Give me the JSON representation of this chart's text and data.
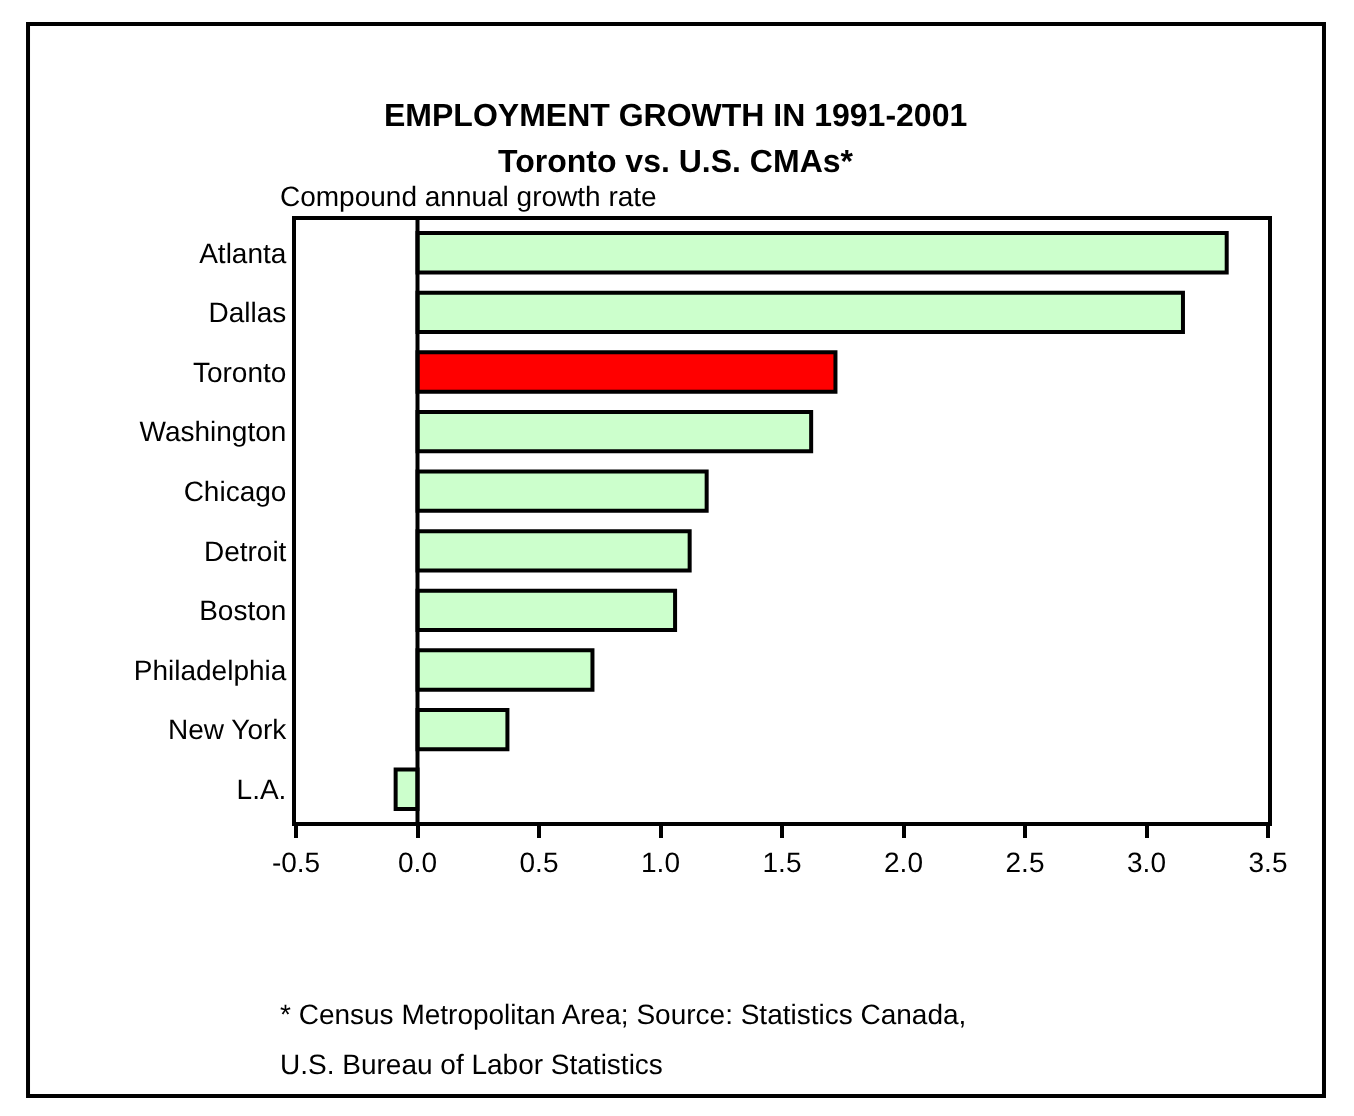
{
  "chart_data": {
    "type": "bar",
    "orientation": "horizontal",
    "title": "EMPLOYMENT GROWTH IN 1991-2001",
    "subtitle": "Toronto vs. U.S. CMAs*",
    "categories": [
      "Atlanta",
      "Dallas",
      "Toronto",
      "Washington",
      "Chicago",
      "Detroit",
      "Boston",
      "Philadelphia",
      "New York",
      "L.A."
    ],
    "values": [
      3.33,
      3.15,
      1.72,
      1.62,
      1.19,
      1.12,
      1.06,
      0.72,
      0.37,
      -0.09
    ],
    "colors": [
      "#ccffcc",
      "#ccffcc",
      "#ff0000",
      "#ccffcc",
      "#ccffcc",
      "#ccffcc",
      "#ccffcc",
      "#ccffcc",
      "#ccffcc",
      "#ccffcc"
    ],
    "xlim": [
      -0.5,
      3.5
    ],
    "xticks": [
      {
        "value": -0.5,
        "label": "-0.5"
      },
      {
        "value": 0,
        "label": "0.0"
      },
      {
        "value": 0.5,
        "label": "0.5"
      },
      {
        "value": 1,
        "label": "1.0"
      },
      {
        "value": 1.5,
        "label": "1.5"
      },
      {
        "value": 2,
        "label": "2.0"
      },
      {
        "value": 2.5,
        "label": "2.5"
      },
      {
        "value": 3,
        "label": "3.0"
      },
      {
        "value": 3.5,
        "label": "3.5"
      }
    ],
    "annotations": [
      "Compound annual growth rate",
      "* Census Metropolitan Area; Source: Statistics Canada,",
      "U.S. Bureau of Labor Statistics"
    ],
    "ref_lines": [
      {
        "axis": "x",
        "value": 0,
        "color": "#000000"
      }
    ],
    "grid": false
  }
}
